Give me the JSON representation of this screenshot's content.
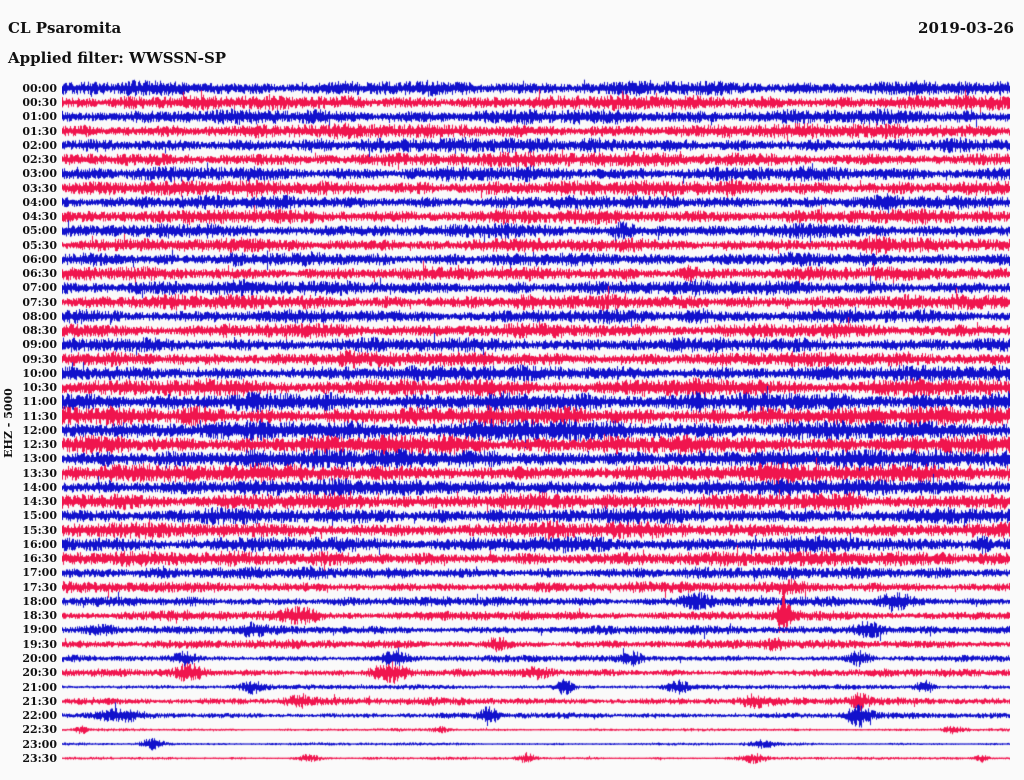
{
  "header": {
    "station": "CL Psaromita",
    "date": "2019-03-26",
    "filter_label": "Applied filter: WWSSN-SP"
  },
  "axis": {
    "left_label": "EHZ - 5000"
  },
  "colors": {
    "background": "#fafafa",
    "text": "#111111",
    "trace_blue": "#1111cc",
    "trace_red": "#f0154e"
  },
  "chart_data": {
    "type": "line",
    "title": "CL Psaromita",
    "subtitle": "Applied filter: WWSSN-SP",
    "date": "2019-03-26",
    "ylabel": "EHZ - 5000",
    "channel": "EHZ",
    "scale": 5000,
    "row_duration_minutes": 30,
    "legend": "none",
    "grid": false,
    "bursts_format": "[x_fraction_along_row, gaussian_width_px, extra_amplitude_px]",
    "amplitude_units": "approx_half_band_px",
    "rows": [
      {
        "label": "00:00",
        "color": "blue",
        "amp": 7.5,
        "bursts": []
      },
      {
        "label": "00:30",
        "color": "red",
        "amp": 7.5,
        "bursts": []
      },
      {
        "label": "01:00",
        "color": "blue",
        "amp": 7.5,
        "bursts": []
      },
      {
        "label": "01:30",
        "color": "red",
        "amp": 7.5,
        "bursts": []
      },
      {
        "label": "02:00",
        "color": "blue",
        "amp": 7.5,
        "bursts": []
      },
      {
        "label": "02:30",
        "color": "red",
        "amp": 7.5,
        "bursts": []
      },
      {
        "label": "03:00",
        "color": "blue",
        "amp": 7.5,
        "bursts": []
      },
      {
        "label": "03:30",
        "color": "red",
        "amp": 8.0,
        "bursts": []
      },
      {
        "label": "04:00",
        "color": "blue",
        "amp": 7.0,
        "bursts": [
          [
            0.87,
            6,
            5
          ]
        ]
      },
      {
        "label": "04:30",
        "color": "red",
        "amp": 7.5,
        "bursts": []
      },
      {
        "label": "05:00",
        "color": "blue",
        "amp": 7.0,
        "bursts": [
          [
            0.59,
            8,
            4
          ]
        ]
      },
      {
        "label": "05:30",
        "color": "red",
        "amp": 7.0,
        "bursts": [
          [
            0.86,
            8,
            4
          ]
        ]
      },
      {
        "label": "06:00",
        "color": "blue",
        "amp": 7.0,
        "bursts": []
      },
      {
        "label": "06:30",
        "color": "red",
        "amp": 7.0,
        "bursts": [
          [
            0.66,
            8,
            4
          ]
        ]
      },
      {
        "label": "07:00",
        "color": "blue",
        "amp": 7.5,
        "bursts": []
      },
      {
        "label": "07:30",
        "color": "red",
        "amp": 7.5,
        "bursts": []
      },
      {
        "label": "08:00",
        "color": "blue",
        "amp": 7.0,
        "bursts": [
          [
            0.67,
            8,
            4
          ]
        ]
      },
      {
        "label": "08:30",
        "color": "red",
        "amp": 7.5,
        "bursts": []
      },
      {
        "label": "09:00",
        "color": "blue",
        "amp": 7.5,
        "bursts": []
      },
      {
        "label": "09:30",
        "color": "red",
        "amp": 7.5,
        "bursts": [
          [
            0.3,
            10,
            3
          ]
        ]
      },
      {
        "label": "10:00",
        "color": "blue",
        "amp": 8.0,
        "bursts": []
      },
      {
        "label": "10:30",
        "color": "red",
        "amp": 9.0,
        "bursts": [
          [
            0.67,
            10,
            3
          ]
        ]
      },
      {
        "label": "11:00",
        "color": "blue",
        "amp": 9.5,
        "bursts": [
          [
            0.67,
            6,
            5
          ]
        ]
      },
      {
        "label": "11:30",
        "color": "red",
        "amp": 9.5,
        "bursts": [
          [
            0.15,
            10,
            3
          ],
          [
            0.74,
            10,
            3
          ]
        ]
      },
      {
        "label": "12:00",
        "color": "blue",
        "amp": 10.0,
        "bursts": [
          [
            0.47,
            30,
            3
          ]
        ]
      },
      {
        "label": "12:30",
        "color": "red",
        "amp": 9.5,
        "bursts": [
          [
            0.4,
            20,
            3
          ]
        ]
      },
      {
        "label": "13:00",
        "color": "blue",
        "amp": 9.5,
        "bursts": []
      },
      {
        "label": "13:30",
        "color": "red",
        "amp": 9.0,
        "bursts": [
          [
            0.75,
            10,
            3
          ]
        ]
      },
      {
        "label": "14:00",
        "color": "blue",
        "amp": 8.5,
        "bursts": []
      },
      {
        "label": "14:30",
        "color": "red",
        "amp": 8.5,
        "bursts": [
          [
            0.83,
            8,
            3
          ]
        ]
      },
      {
        "label": "15:00",
        "color": "blue",
        "amp": 8.0,
        "bursts": [
          [
            0.4,
            8,
            3
          ]
        ]
      },
      {
        "label": "15:30",
        "color": "red",
        "amp": 8.0,
        "bursts": [
          [
            0.52,
            8,
            3
          ]
        ]
      },
      {
        "label": "16:00",
        "color": "blue",
        "amp": 8.0,
        "bursts": [
          [
            0.97,
            6,
            4
          ]
        ]
      },
      {
        "label": "16:30",
        "color": "red",
        "amp": 7.5,
        "bursts": []
      },
      {
        "label": "17:00",
        "color": "blue",
        "amp": 6.0,
        "bursts": []
      },
      {
        "label": "17:30",
        "color": "red",
        "amp": 5.5,
        "bursts": [
          [
            0.77,
            10,
            3
          ]
        ]
      },
      {
        "label": "18:00",
        "color": "blue",
        "amp": 5.0,
        "bursts": [
          [
            0.67,
            12,
            6
          ],
          [
            0.88,
            10,
            6
          ]
        ]
      },
      {
        "label": "18:30",
        "color": "red",
        "amp": 5.0,
        "bursts": [
          [
            0.25,
            15,
            5
          ],
          [
            0.76,
            4,
            22
          ]
        ]
      },
      {
        "label": "19:00",
        "color": "blue",
        "amp": 4.5,
        "bursts": [
          [
            0.04,
            10,
            4
          ],
          [
            0.2,
            8,
            4
          ],
          [
            0.85,
            12,
            6
          ]
        ]
      },
      {
        "label": "19:30",
        "color": "red",
        "amp": 4.5,
        "bursts": [
          [
            0.46,
            8,
            4
          ],
          [
            0.75,
            8,
            3
          ]
        ]
      },
      {
        "label": "20:00",
        "color": "blue",
        "amp": 3.5,
        "bursts": [
          [
            0.13,
            8,
            5
          ],
          [
            0.35,
            8,
            6
          ],
          [
            0.6,
            8,
            4
          ],
          [
            0.84,
            8,
            5
          ]
        ]
      },
      {
        "label": "20:30",
        "color": "red",
        "amp": 4.0,
        "bursts": [
          [
            0.135,
            10,
            6
          ],
          [
            0.345,
            12,
            7
          ],
          [
            0.5,
            8,
            3
          ]
        ]
      },
      {
        "label": "21:00",
        "color": "blue",
        "amp": 2.5,
        "bursts": [
          [
            0.2,
            8,
            5
          ],
          [
            0.53,
            6,
            6
          ],
          [
            0.65,
            8,
            5
          ],
          [
            0.91,
            6,
            6
          ]
        ]
      },
      {
        "label": "21:30",
        "color": "red",
        "amp": 4.0,
        "bursts": [
          [
            0.25,
            10,
            4
          ],
          [
            0.73,
            8,
            4
          ],
          [
            0.84,
            6,
            5
          ]
        ]
      },
      {
        "label": "22:00",
        "color": "blue",
        "amp": 3.0,
        "bursts": [
          [
            0.06,
            15,
            4
          ],
          [
            0.45,
            6,
            7
          ],
          [
            0.84,
            8,
            9
          ]
        ]
      },
      {
        "label": "22:30",
        "color": "red",
        "amp": 1.5,
        "bursts": [
          [
            0.02,
            4,
            3
          ],
          [
            0.4,
            6,
            2
          ],
          [
            0.94,
            8,
            3
          ]
        ]
      },
      {
        "label": "23:00",
        "color": "blue",
        "amp": 1.5,
        "bursts": [
          [
            0.095,
            8,
            5
          ],
          [
            0.74,
            10,
            3
          ]
        ]
      },
      {
        "label": "23:30",
        "color": "red",
        "amp": 1.5,
        "bursts": [
          [
            0.26,
            8,
            3
          ],
          [
            0.49,
            6,
            4
          ],
          [
            0.73,
            10,
            4
          ],
          [
            0.97,
            5,
            3
          ]
        ]
      }
    ]
  }
}
